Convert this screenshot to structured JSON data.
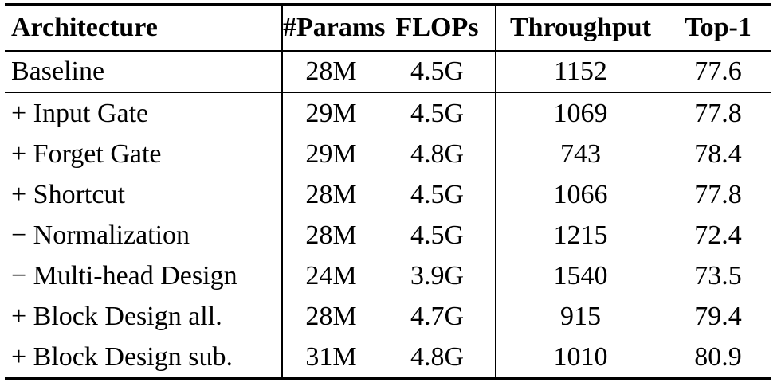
{
  "table": {
    "headers": {
      "architecture": "Architecture",
      "params": "#Params",
      "flops": "FLOPs",
      "throughput": "Throughput",
      "top1": "Top-1"
    },
    "baseline": {
      "architecture": "Baseline",
      "params": "28M",
      "flops": "4.5G",
      "throughput": "1152",
      "top1": "77.6"
    },
    "rows": [
      {
        "architecture": "+ Input Gate",
        "params": "29M",
        "flops": "4.5G",
        "throughput": "1069",
        "top1": "77.8"
      },
      {
        "architecture": "+ Forget Gate",
        "params": "29M",
        "flops": "4.8G",
        "throughput": "743",
        "top1": "78.4"
      },
      {
        "architecture": "+ Shortcut",
        "params": "28M",
        "flops": "4.5G",
        "throughput": "1066",
        "top1": "77.8"
      },
      {
        "architecture": "− Normalization",
        "params": "28M",
        "flops": "4.5G",
        "throughput": "1215",
        "top1": "72.4"
      },
      {
        "architecture": "− Multi-head Design",
        "params": "24M",
        "flops": "3.9G",
        "throughput": "1540",
        "top1": "73.5"
      },
      {
        "architecture": "+ Block Design all.",
        "params": "28M",
        "flops": "4.7G",
        "throughput": "915",
        "top1": "79.4"
      },
      {
        "architecture": "+ Block Design sub.",
        "params": "31M",
        "flops": "4.8G",
        "throughput": "1010",
        "top1": "80.9"
      }
    ]
  }
}
